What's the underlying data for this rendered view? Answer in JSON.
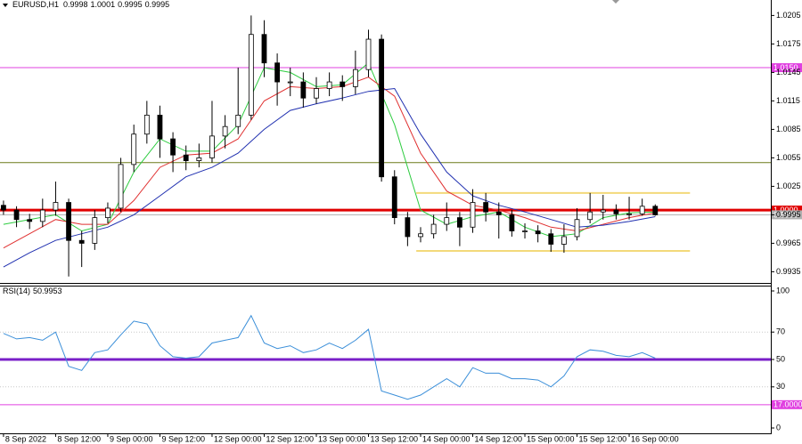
{
  "chart_data": [
    {
      "type": "candlestick",
      "title": "EURUSD,H1",
      "ohlc": [
        0.9998,
        1.0001,
        0.9995,
        0.9995
      ],
      "xlim": [
        -0.6,
        176.6
      ],
      "ylim": [
        0.99232,
        1.02213
      ],
      "yticks": [
        1.0205,
        1.0175,
        1.0145,
        1.0115,
        1.0085,
        1.0055,
        1.0025,
        0.9995,
        0.9965,
        0.9935
      ],
      "xticks": [
        {
          "value": 0,
          "label": "8 Sep 2022"
        },
        {
          "value": 12,
          "label": "8 Sep 12:00"
        },
        {
          "value": 24,
          "label": "9 Sep 00:00"
        },
        {
          "value": 36,
          "label": "9 Sep 12:00"
        },
        {
          "value": 48,
          "label": "12 Sep 00:00"
        },
        {
          "value": 60,
          "label": "12 Sep 12:00"
        },
        {
          "value": 72,
          "label": "13 Sep 00:00"
        },
        {
          "value": 84,
          "label": "13 Sep 12:00"
        },
        {
          "value": 96,
          "label": "14 Sep 00:00"
        },
        {
          "value": 108,
          "label": "14 Sep 12:00"
        },
        {
          "value": 120,
          "label": "15 Sep 00:00"
        },
        {
          "value": 132,
          "label": "15 Sep 12:00"
        },
        {
          "value": 144,
          "label": "16 Sep 00:00"
        }
      ],
      "x": [
        0,
        3,
        6,
        9,
        12,
        15,
        18,
        21,
        24,
        27,
        30,
        33,
        36,
        39,
        42,
        45,
        48,
        51,
        54,
        57,
        60,
        63,
        66,
        69,
        72,
        75,
        78,
        81,
        84,
        87,
        90,
        93,
        96,
        99,
        102,
        105,
        108,
        111,
        114,
        117,
        120,
        123,
        126,
        129,
        132,
        135,
        138,
        141,
        144,
        147,
        150
      ],
      "open": [
        1.0005,
        1.0,
        0.999,
        0.9988,
        1.0,
        1.0008,
        0.9968,
        0.9965,
        0.9992,
        1.0002,
        1.0048,
        1.008,
        1.01,
        1.0075,
        1.0058,
        1.0052,
        1.0055,
        1.0078,
        1.0088,
        1.01,
        1.0185,
        1.0155,
        1.0135,
        1.0135,
        1.0118,
        1.0128,
        1.0135,
        1.013,
        1.0148,
        1.018,
        1.0035,
        0.9992,
        0.9972,
        0.9975,
        0.9985,
        0.9992,
        0.9982,
        1.0008,
        0.9998,
        0.9995,
        0.9978,
        0.9978,
        0.9975,
        0.9964,
        0.9972,
        0.999,
        0.9998,
        1.0,
        0.9996,
        0.9996,
        1.0004
      ],
      "high": [
        1.001,
        1.0004,
        0.9996,
        1.0012,
        1.003,
        1.0012,
        0.9978,
        1.0,
        1.0008,
        1.0055,
        1.009,
        1.0115,
        1.011,
        1.0082,
        1.0068,
        1.007,
        1.0115,
        1.01,
        1.015,
        1.0205,
        1.02,
        1.0165,
        1.015,
        1.0145,
        1.014,
        1.0145,
        1.0142,
        1.0168,
        1.019,
        1.0185,
        1.0042,
        0.9998,
        0.9982,
        0.9995,
        1.0008,
        0.9998,
        1.0022,
        1.0018,
        1.0008,
        1.0,
        0.9986,
        0.9984,
        0.998,
        0.9985,
        1.0002,
        1.0018,
        1.0016,
        1.0006,
        1.0014,
        1.0012,
        1.0006
      ],
      "low": [
        0.9995,
        0.9982,
        0.998,
        0.9982,
        0.9994,
        0.993,
        0.994,
        0.9958,
        0.9986,
        0.9998,
        1.004,
        1.007,
        1.0055,
        1.004,
        1.0042,
        1.0045,
        1.005,
        1.0065,
        1.008,
        1.0095,
        1.014,
        1.011,
        1.012,
        1.0108,
        1.0112,
        1.012,
        1.0115,
        1.0122,
        1.014,
        1.003,
        0.9985,
        0.9962,
        0.9966,
        0.997,
        0.9978,
        0.9962,
        0.9976,
        0.9988,
        0.997,
        0.9972,
        0.997,
        0.9966,
        0.9956,
        0.9955,
        0.9968,
        0.9986,
        0.999,
        0.999,
        0.999,
        0.9994,
        0.9994
      ],
      "close": [
        1.0,
        0.999,
        0.9988,
        1.0,
        1.0008,
        0.9968,
        0.9965,
        0.9992,
        1.0002,
        1.0048,
        1.008,
        1.01,
        1.0075,
        1.0058,
        1.0052,
        1.0055,
        1.0078,
        1.0088,
        1.01,
        1.0185,
        1.0155,
        1.0135,
        1.0135,
        1.0118,
        1.0128,
        1.0135,
        1.013,
        1.0148,
        1.018,
        1.0035,
        0.9992,
        0.9972,
        0.9975,
        0.9985,
        0.9992,
        0.9982,
        1.0008,
        0.9998,
        0.9995,
        0.9978,
        0.9978,
        0.9975,
        0.9964,
        0.9972,
        0.999,
        0.9998,
        1.0,
        0.9996,
        0.9996,
        1.0004,
        0.9995
      ],
      "series": [
        {
          "color": "#2ecc40",
          "x": [
            0,
            6,
            12,
            18,
            24,
            30,
            36,
            42,
            48,
            54,
            60,
            66,
            72,
            78,
            84,
            90,
            96,
            102,
            108,
            114,
            120,
            126,
            132,
            138,
            144,
            150
          ],
          "values": [
            0.9985,
            0.999,
            0.9995,
            0.9978,
            0.9985,
            1.004,
            1.0075,
            1.0062,
            1.0062,
            1.009,
            1.015,
            1.0145,
            1.013,
            1.0132,
            1.0155,
            1.009,
            1.0,
            0.9985,
            0.9993,
            0.9998,
            0.9982,
            0.9972,
            0.9975,
            0.9992,
            0.9997,
            0.9998
          ]
        },
        {
          "color": "#e03030",
          "x": [
            0,
            6,
            12,
            18,
            24,
            30,
            36,
            42,
            48,
            54,
            60,
            66,
            72,
            78,
            84,
            90,
            96,
            102,
            108,
            114,
            120,
            126,
            132,
            138,
            144,
            150
          ],
          "values": [
            0.996,
            0.9975,
            0.999,
            0.9985,
            0.9985,
            1.001,
            1.0045,
            1.0058,
            1.006,
            1.0075,
            1.0115,
            1.013,
            1.0128,
            1.013,
            1.014,
            1.012,
            1.006,
            1.002,
            1.0005,
            1.0,
            0.9992,
            0.9982,
            0.9978,
            0.9985,
            0.9992,
            0.9997
          ]
        },
        {
          "color": "#2030b0",
          "x": [
            0,
            6,
            12,
            18,
            24,
            30,
            36,
            42,
            48,
            54,
            60,
            66,
            72,
            78,
            84,
            90,
            96,
            102,
            108,
            114,
            120,
            126,
            132,
            138,
            144,
            150
          ],
          "values": [
            0.994,
            0.9955,
            0.9968,
            0.9975,
            0.9982,
            0.9995,
            1.0015,
            1.0035,
            1.0045,
            1.006,
            1.0085,
            1.0105,
            1.0112,
            1.0118,
            1.0125,
            1.0128,
            1.008,
            1.004,
            1.0015,
            1.0005,
            0.9998,
            0.999,
            0.9982,
            0.9984,
            0.9988,
            0.9993
          ]
        }
      ],
      "levels": [
        {
          "value": 1.015,
          "label": "1.0150",
          "color": "#e040e0",
          "style": "solid"
        },
        {
          "value": 1.005,
          "color": "#6b7a1a",
          "style": "solid"
        },
        {
          "value": 1.0,
          "label": "1.0000",
          "color": "#e00000",
          "style": "thick"
        },
        {
          "value": 0.9995,
          "label": "0.9995",
          "color": "#b0b0b0",
          "style": "solid"
        }
      ],
      "zone": {
        "color": "#f3d97a",
        "x": [
          95,
          158
        ],
        "levels": [
          1.0018,
          0.9957
        ]
      },
      "colors": {
        "up": "#ffffff",
        "down": "#000000",
        "outline": "#000000"
      }
    },
    {
      "type": "line",
      "title": "RSI(14)",
      "last": 50.9953,
      "xlim": [
        -0.6,
        176.6
      ],
      "ylim": [
        -3.9,
        103.9
      ],
      "yticks": [
        100,
        70,
        50,
        30,
        0
      ],
      "x": [
        0,
        3,
        6,
        9,
        12,
        15,
        18,
        21,
        24,
        27,
        30,
        33,
        36,
        39,
        42,
        45,
        48,
        51,
        54,
        57,
        60,
        63,
        66,
        69,
        72,
        75,
        78,
        81,
        84,
        87,
        90,
        93,
        96,
        99,
        102,
        105,
        108,
        111,
        114,
        117,
        120,
        123,
        126,
        129,
        132,
        135,
        138,
        141,
        144,
        147,
        150
      ],
      "values": [
        69,
        65,
        66,
        64,
        70,
        45,
        42,
        55,
        57,
        68,
        78,
        76,
        60,
        52,
        51,
        52,
        62,
        64,
        66,
        82,
        62,
        58,
        60,
        55,
        57,
        62,
        58,
        64,
        72,
        27,
        24,
        21,
        24,
        30,
        36,
        30,
        44,
        40,
        40,
        36,
        36,
        35,
        30,
        38,
        52,
        57,
        56,
        53,
        52,
        55,
        51
      ],
      "color": "#3b8fd9",
      "levels": [
        {
          "value": 70,
          "color": "#c8c8c8",
          "style": "dotted"
        },
        {
          "value": 30,
          "color": "#c8c8c8",
          "style": "dotted"
        },
        {
          "value": 50,
          "color": "#7a1fc8",
          "style": "thick"
        },
        {
          "value": 17,
          "label": "17.0000",
          "color": "#e040e0",
          "style": "solid"
        }
      ]
    }
  ]
}
